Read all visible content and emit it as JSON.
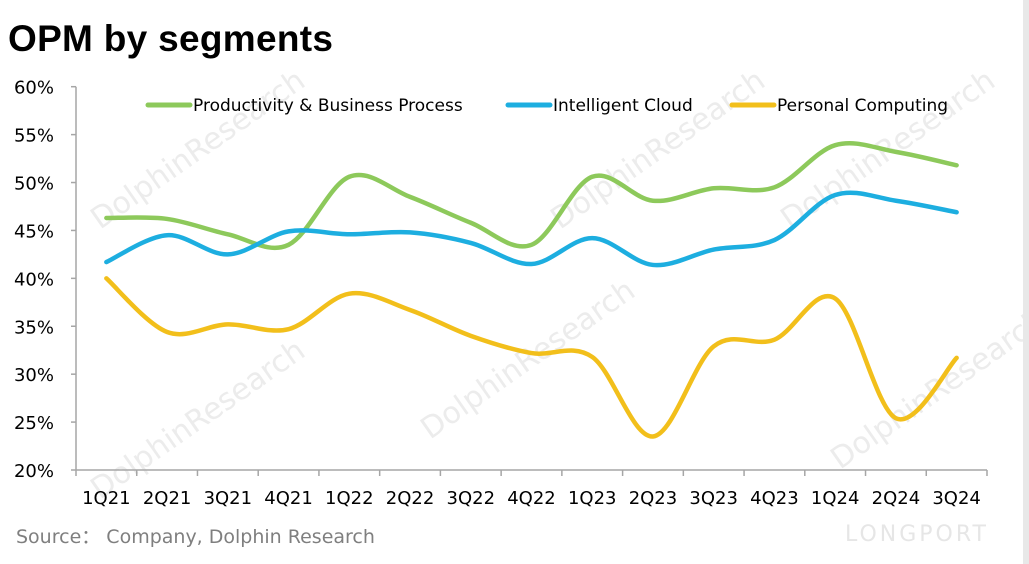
{
  "chart_data": {
    "type": "line",
    "title": "OPM by segments",
    "categories": [
      "1Q21",
      "2Q21",
      "3Q21",
      "4Q21",
      "1Q22",
      "2Q22",
      "3Q22",
      "4Q22",
      "1Q23",
      "2Q23",
      "3Q23",
      "4Q23",
      "1Q24",
      "2Q24",
      "3Q24"
    ],
    "ylim": [
      20,
      60
    ],
    "yticks": [
      "20%",
      "25%",
      "30%",
      "35%",
      "40%",
      "45%",
      "50%",
      "55%",
      "60%"
    ],
    "ytick_values": [
      20,
      25,
      30,
      35,
      40,
      45,
      50,
      55,
      60
    ],
    "y_unit": "%",
    "grid": false,
    "legend_position": "top",
    "smooth": true,
    "series": [
      {
        "name": "Productivity & Business Process",
        "color": "#8dc95b",
        "values": [
          46.3,
          46.2,
          44.6,
          43.5,
          50.6,
          48.5,
          45.8,
          43.5,
          50.6,
          48.1,
          49.4,
          49.5,
          53.9,
          53.2,
          51.8
        ]
      },
      {
        "name": "Intelligent Cloud",
        "color": "#1daee0",
        "values": [
          41.7,
          44.5,
          42.5,
          44.9,
          44.6,
          44.8,
          43.7,
          41.5,
          44.2,
          41.4,
          43.0,
          44.0,
          48.7,
          48.1,
          46.9
        ]
      },
      {
        "name": "Personal Computing",
        "color": "#f2bf1b",
        "values": [
          40.0,
          34.4,
          35.2,
          34.7,
          38.4,
          36.7,
          34.0,
          32.2,
          31.8,
          23.5,
          32.9,
          33.6,
          37.9,
          25.4,
          31.7
        ]
      }
    ]
  },
  "source": "Source： Company, Dolphin Research",
  "watermark": {
    "text": "DolphinResearch",
    "brand": "LONGPORT"
  }
}
